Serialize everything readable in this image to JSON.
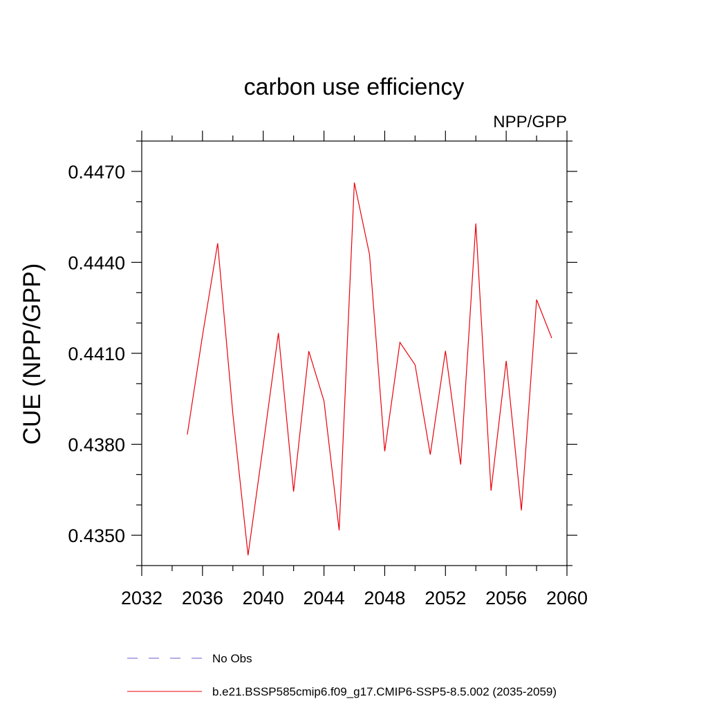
{
  "chart_data": {
    "type": "line",
    "title": "carbon use efficiency",
    "subtitle": "NPP/GPP",
    "xlabel": "",
    "ylabel": "CUE  (NPP/GPP)",
    "xlim": [
      2032,
      2060
    ],
    "ylim": [
      0.434,
      0.448
    ],
    "x_major_ticks": [
      2032,
      2036,
      2040,
      2044,
      2048,
      2052,
      2056,
      2060
    ],
    "x_major_tick_labels": [
      "2032",
      "2036",
      "2040",
      "2044",
      "2048",
      "2052",
      "2056",
      "2060"
    ],
    "x_minor_step": 2,
    "y_major_ticks": [
      0.435,
      0.438,
      0.441,
      0.444,
      0.447
    ],
    "y_major_tick_labels": [
      "0.4350",
      "0.4380",
      "0.4410",
      "0.4440",
      "0.4470"
    ],
    "y_minor_step": 0.001,
    "grid": false,
    "legend_position": "bottom",
    "series": [
      {
        "name": "b.e21.BSSP585cmip6.f09_g17.CMIP6-SSP5-8.5.002 (2035-2059)",
        "color": "#e8000b",
        "dash": "solid",
        "x": [
          2035,
          2036,
          2037,
          2038,
          2039,
          2040,
          2041,
          2042,
          2043,
          2044,
          2045,
          2046,
          2047,
          2048,
          2049,
          2050,
          2051,
          2052,
          2053,
          2054,
          2055,
          2056,
          2057,
          2058,
          2059
        ],
        "y": [
          0.43832,
          0.44158,
          0.44463,
          0.439,
          0.43434,
          0.43797,
          0.44167,
          0.43644,
          0.44107,
          0.43943,
          0.43516,
          0.44663,
          0.44426,
          0.43777,
          0.44136,
          0.44062,
          0.43766,
          0.44108,
          0.43733,
          0.44528,
          0.43647,
          0.44075,
          0.43582,
          0.44277,
          0.4415
        ]
      }
    ],
    "legend": [
      {
        "label": "No Obs",
        "color": "#6a5acd",
        "dash": "dashed"
      },
      {
        "label": "b.e21.BSSP585cmip6.f09_g17.CMIP6-SSP5-8.5.002 (2035-2059)",
        "color": "#e8000b",
        "dash": "solid"
      }
    ]
  }
}
